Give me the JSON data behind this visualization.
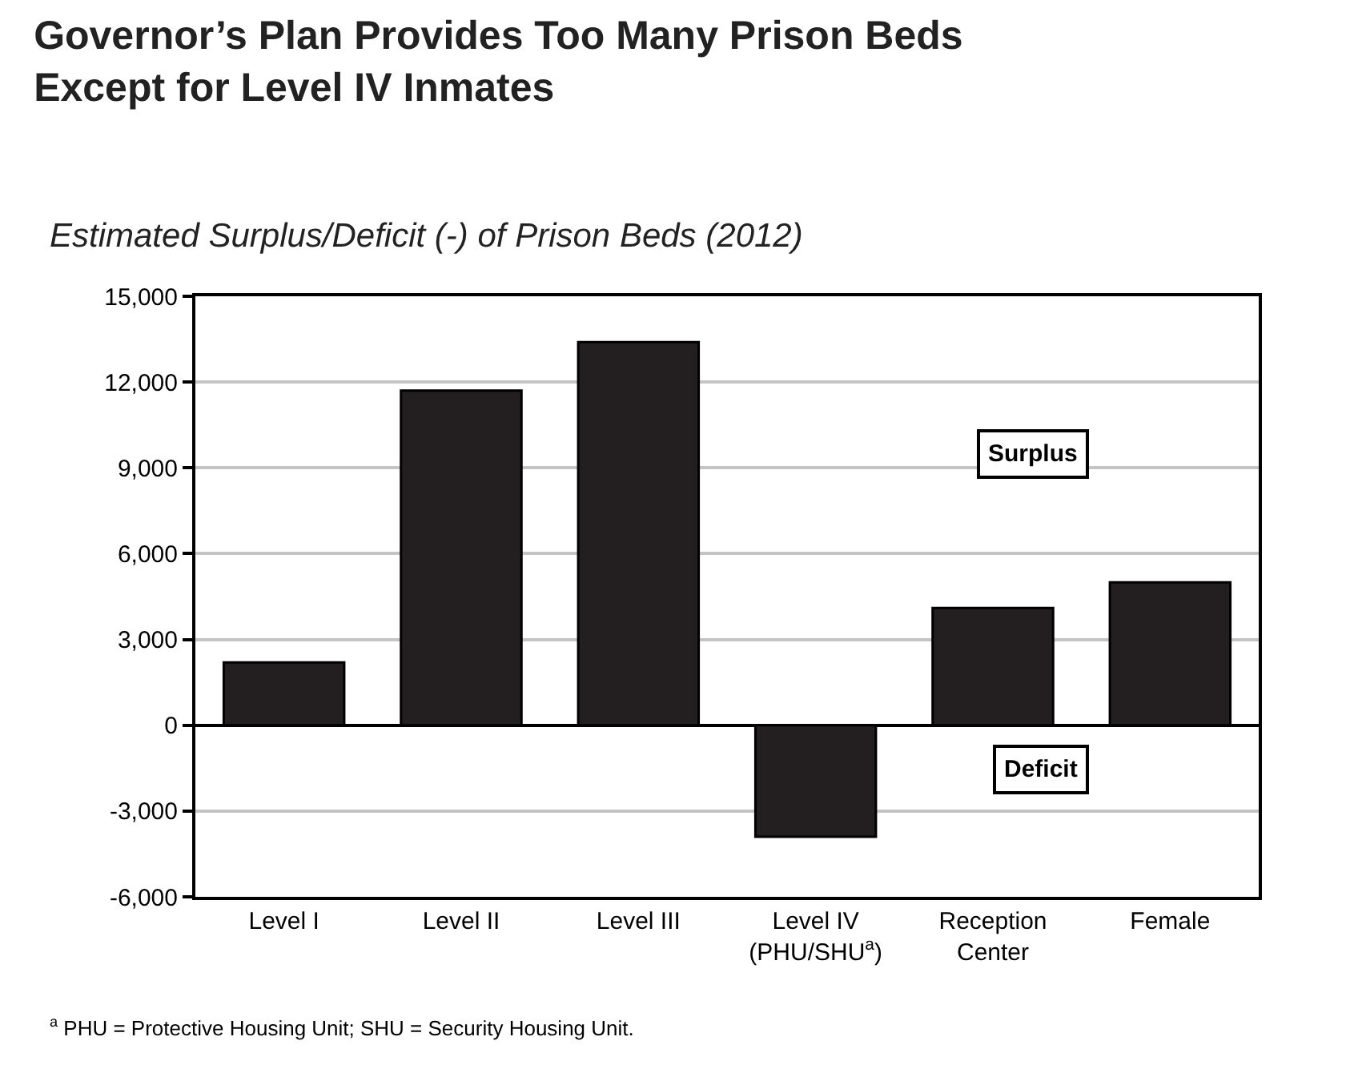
{
  "chart_data": {
    "type": "bar",
    "title": "Governor’s Plan Provides Too Many Prison Beds\nExcept for Level IV Inmates",
    "subtitle": "Estimated Surplus/Deficit (-) of Prison Beds (2012)",
    "categories": [
      "Level I",
      "Level II",
      "Level III",
      "Level IV\n(PHU/SHU$^{a}$)",
      "Reception\nCenter",
      "Female"
    ],
    "values": [
      2200,
      11700,
      13400,
      -3900,
      4100,
      5000
    ],
    "color": "#231f20",
    "ylim": [
      -6000,
      15000
    ],
    "yticks": [
      {
        "value": -6000,
        "label": "-6,000"
      },
      {
        "value": -3000,
        "label": "-3,000"
      },
      0,
      {
        "value": 3000,
        "label": "3,000"
      },
      {
        "value": 6000,
        "label": "6,000"
      },
      {
        "value": 9000,
        "label": "9,000"
      },
      {
        "value": 12000,
        "label": "12,000"
      },
      {
        "value": 15000,
        "label": "15,000"
      }
    ],
    "grid": "y",
    "annotations": [
      "Surplus",
      "Deficit",
      "$^{a}$ PHU = Protective Housing Unit; SHU = Security Housing Unit."
    ]
  }
}
